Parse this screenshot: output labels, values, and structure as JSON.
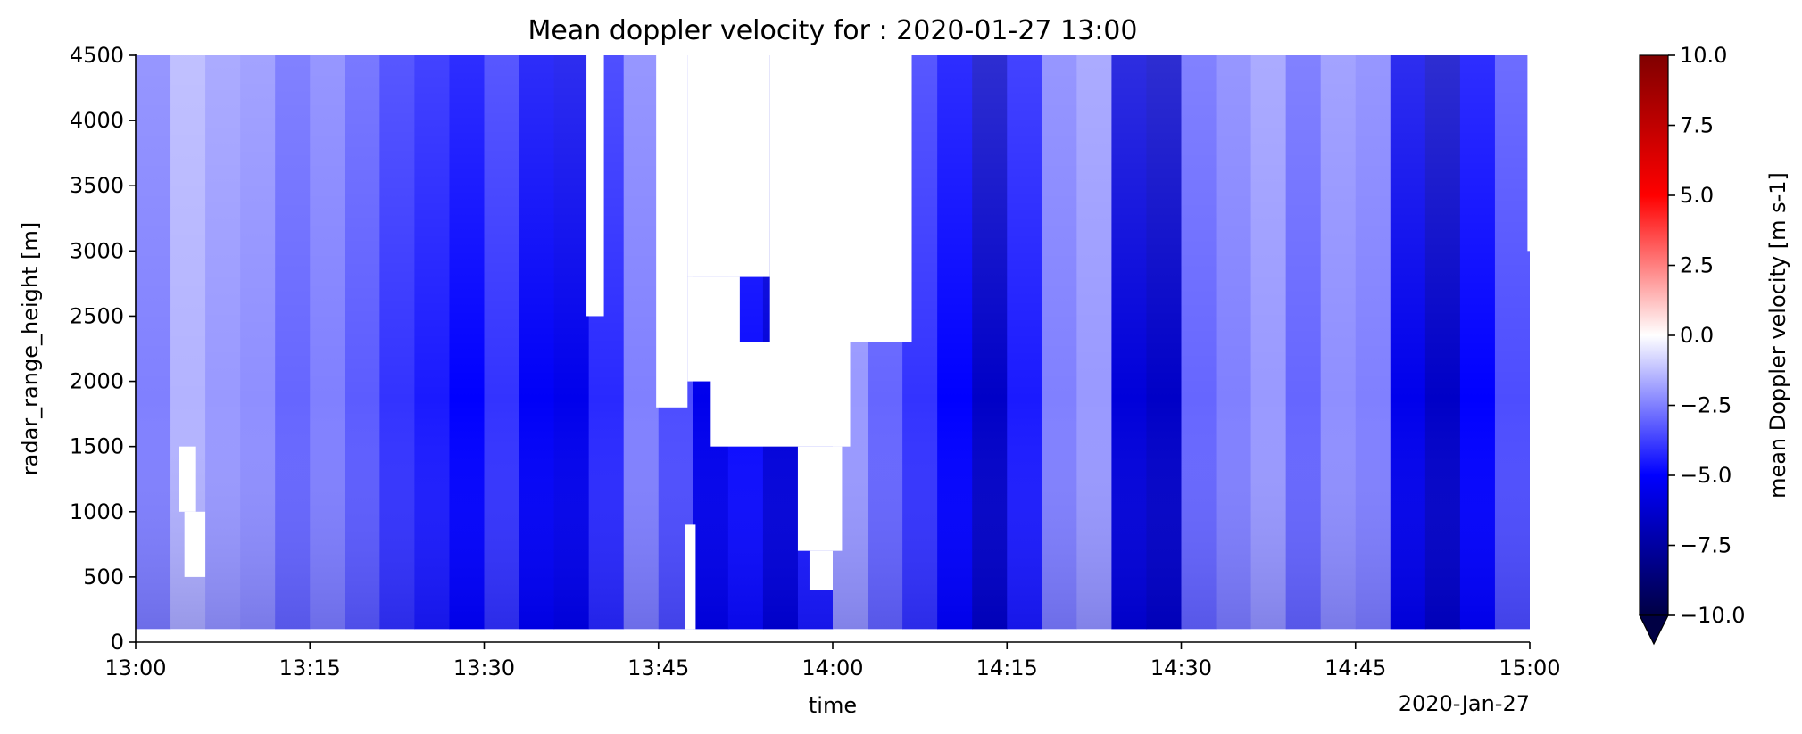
{
  "chart_data": {
    "type": "heatmap",
    "title": "Mean doppler velocity for : 2020-01-27 13:00",
    "xlabel": "time",
    "ylabel": "radar_range_height [m]",
    "x_ticks": [
      "13:00",
      "13:15",
      "13:30",
      "13:45",
      "14:00",
      "14:15",
      "14:30",
      "14:45",
      "15:00"
    ],
    "x_offset_label": "2020-Jan-27",
    "xlim": [
      "2020-01-27 13:00",
      "2020-01-27 15:00"
    ],
    "y_ticks": [
      0,
      500,
      1000,
      1500,
      2000,
      2500,
      3000,
      3500,
      4000,
      4500
    ],
    "ylim": [
      0,
      4500
    ],
    "data_bottom_m": 100,
    "colorbar": {
      "label": "mean Doppler velocity [m s-1]",
      "cmap": "seismic",
      "vmin": -10.0,
      "vmax": 10.0,
      "ticks": [
        "10.0",
        "7.5",
        "5.0",
        "2.5",
        "0.0",
        "−2.5",
        "−5.0",
        "−7.5",
        "−10.0"
      ],
      "extend": "min"
    },
    "colors": {
      "vmin": "#000044",
      "neg_strong": "#0000ff",
      "zero": "#ffffff",
      "pos_strong": "#ff0000",
      "vmax": "#800000"
    },
    "columns": [
      {
        "t": 0,
        "v": -2.5
      },
      {
        "t": 3,
        "v": -1.5
      },
      {
        "t": 6,
        "v": -2.0
      },
      {
        "t": 9,
        "v": -2.2
      },
      {
        "t": 12,
        "v": -3.0
      },
      {
        "t": 15,
        "v": -2.5
      },
      {
        "t": 18,
        "v": -3.2
      },
      {
        "t": 21,
        "v": -4.0
      },
      {
        "t": 24,
        "v": -4.5
      },
      {
        "t": 27,
        "v": -5.0
      },
      {
        "t": 30,
        "v": -4.0
      },
      {
        "t": 33,
        "v": -5.2
      },
      {
        "t": 36,
        "v": -5.5
      },
      {
        "t": 39,
        "v": -4.2
      },
      {
        "t": 42,
        "v": -2.5
      },
      {
        "t": 45,
        "v": -3.5
      },
      {
        "t": 48,
        "v": -5.5
      },
      {
        "t": 51,
        "v": -4.8
      },
      {
        "t": 54,
        "v": -6.0
      },
      {
        "t": 57,
        "v": -4.5
      },
      {
        "t": 60,
        "v": -2.0
      },
      {
        "t": 63,
        "v": -3.0
      },
      {
        "t": 66,
        "v": -4.0
      },
      {
        "t": 69,
        "v": -5.0
      },
      {
        "t": 72,
        "v": -6.5
      },
      {
        "t": 75,
        "v": -4.5
      },
      {
        "t": 78,
        "v": -2.5
      },
      {
        "t": 81,
        "v": -2.0
      },
      {
        "t": 84,
        "v": -6.0
      },
      {
        "t": 87,
        "v": -6.5
      },
      {
        "t": 90,
        "v": -3.0
      },
      {
        "t": 93,
        "v": -2.5
      },
      {
        "t": 96,
        "v": -2.0
      },
      {
        "t": 99,
        "v": -3.0
      },
      {
        "t": 102,
        "v": -2.2
      },
      {
        "t": 105,
        "v": -2.5
      },
      {
        "t": 108,
        "v": -5.5
      },
      {
        "t": 111,
        "v": -6.5
      },
      {
        "t": 114,
        "v": -5.0
      },
      {
        "t": 117,
        "v": -3.5
      }
    ],
    "gaps": [
      {
        "t0": 38.8,
        "t1": 40.3,
        "h0": 2500,
        "h1": 4500
      },
      {
        "t0": 44.8,
        "t1": 47.5,
        "h0": 1800,
        "h1": 4500
      },
      {
        "t0": 47.5,
        "t1": 54.6,
        "h0": 2800,
        "h1": 4500
      },
      {
        "t0": 47.5,
        "t1": 52.0,
        "h0": 2000,
        "h1": 2800
      },
      {
        "t0": 54.6,
        "t1": 66.8,
        "h0": 2300,
        "h1": 4500
      },
      {
        "t0": 49.5,
        "t1": 61.5,
        "h0": 1500,
        "h1": 2300
      },
      {
        "t0": 57.0,
        "t1": 60.8,
        "h0": 700,
        "h1": 1500
      },
      {
        "t0": 58.0,
        "t1": 60.0,
        "h0": 400,
        "h1": 700
      },
      {
        "t0": 119.8,
        "t1": 120.0,
        "h0": 3000,
        "h1": 4500
      },
      {
        "t0": 3.7,
        "t1": 5.2,
        "h0": 1000,
        "h1": 1500
      },
      {
        "t0": 4.2,
        "t1": 6.0,
        "h0": 500,
        "h1": 1000
      },
      {
        "t0": 47.3,
        "t1": 48.2,
        "h0": 100,
        "h1": 900
      }
    ]
  }
}
